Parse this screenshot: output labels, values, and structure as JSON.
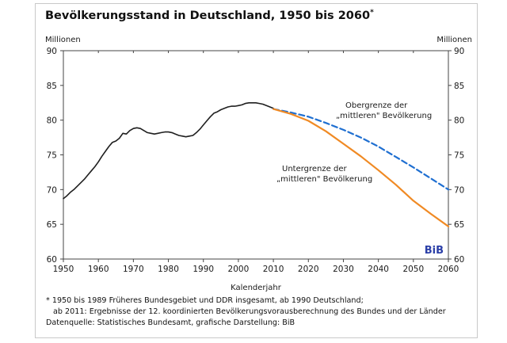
{
  "title_text": "Bevölkerungsstand in Deutschland, 1950 bis 2060",
  "title_mark": "*",
  "colors": {
    "historical": "#1f1f1f",
    "lower_bound": "#f08a24",
    "upper_bound": "#1f6fd1",
    "logo": "#2b3fa8",
    "axis": "#444444"
  },
  "chart_data": {
    "type": "line",
    "title": "Bevölkerungsstand in Deutschland, 1950 bis 2060",
    "xlabel": "Kalenderjahr",
    "ylabel_left": "Millionen",
    "ylabel_right": "Millionen",
    "xlim": [
      1950,
      2060
    ],
    "ylim": [
      60,
      90
    ],
    "x_ticks": [
      1950,
      1960,
      1970,
      1980,
      1990,
      2000,
      2010,
      2020,
      2030,
      2040,
      2050,
      2060
    ],
    "y_ticks": [
      60,
      65,
      70,
      75,
      80,
      85,
      90
    ],
    "grid": false,
    "series": [
      {
        "key": "historical",
        "style": "solid",
        "x": [
          1950,
          1951,
          1952,
          1953,
          1954,
          1955,
          1956,
          1957,
          1958,
          1959,
          1960,
          1961,
          1962,
          1963,
          1964,
          1965,
          1966,
          1967,
          1968,
          1969,
          1970,
          1971,
          1972,
          1973,
          1974,
          1975,
          1976,
          1977,
          1978,
          1979,
          1980,
          1981,
          1982,
          1983,
          1984,
          1985,
          1986,
          1987,
          1988,
          1989,
          1990,
          1991,
          1992,
          1993,
          1994,
          1995,
          1996,
          1997,
          1998,
          1999,
          2000,
          2001,
          2002,
          2003,
          2004,
          2005,
          2006,
          2007,
          2008,
          2009,
          2010
        ],
        "y": [
          68.7,
          69.1,
          69.6,
          70.0,
          70.5,
          71.0,
          71.5,
          72.1,
          72.7,
          73.3,
          74.0,
          74.8,
          75.5,
          76.2,
          76.8,
          77.0,
          77.4,
          78.1,
          78.0,
          78.5,
          78.8,
          78.9,
          78.8,
          78.5,
          78.2,
          78.1,
          78.0,
          78.1,
          78.2,
          78.3,
          78.3,
          78.2,
          78.0,
          77.8,
          77.7,
          77.6,
          77.7,
          77.8,
          78.2,
          78.7,
          79.3,
          79.9,
          80.5,
          81.0,
          81.2,
          81.5,
          81.7,
          81.9,
          82.0,
          82.0,
          82.1,
          82.2,
          82.4,
          82.5,
          82.5,
          82.5,
          82.4,
          82.3,
          82.1,
          81.9,
          81.7
        ]
      },
      {
        "key": "upper_bound",
        "style": "dashed",
        "x": [
          2010,
          2015,
          2020,
          2025,
          2030,
          2035,
          2040,
          2045,
          2050,
          2055,
          2060
        ],
        "y": [
          81.6,
          81.1,
          80.5,
          79.6,
          78.6,
          77.5,
          76.2,
          74.7,
          73.2,
          71.6,
          70.0
        ]
      },
      {
        "key": "lower_bound",
        "style": "solid",
        "x": [
          2010,
          2015,
          2020,
          2025,
          2030,
          2035,
          2040,
          2045,
          2050,
          2055,
          2060
        ],
        "y": [
          81.6,
          80.9,
          79.9,
          78.4,
          76.6,
          74.8,
          72.8,
          70.7,
          68.4,
          66.5,
          64.7
        ]
      }
    ],
    "annotations": {
      "upper_line1": "Obergrenze der",
      "upper_line2": "„mittleren\" Bevölkerung",
      "lower_line1": "Untergrenze der",
      "lower_line2": "„mittleren\" Bevölkerung"
    },
    "logo_text": "BiB"
  },
  "footnotes": {
    "line1": "* 1950 bis 1989 Früheres Bundesgebiet und DDR insgesamt, ab 1990 Deutschland;",
    "line2": "ab 2011: Ergebnisse der 12. koordinierten Bevölkerungsvorausberechnung des Bundes und der Länder",
    "line3": "Datenquelle: Statistisches Bundesamt, grafische Darstellung: BiB"
  }
}
